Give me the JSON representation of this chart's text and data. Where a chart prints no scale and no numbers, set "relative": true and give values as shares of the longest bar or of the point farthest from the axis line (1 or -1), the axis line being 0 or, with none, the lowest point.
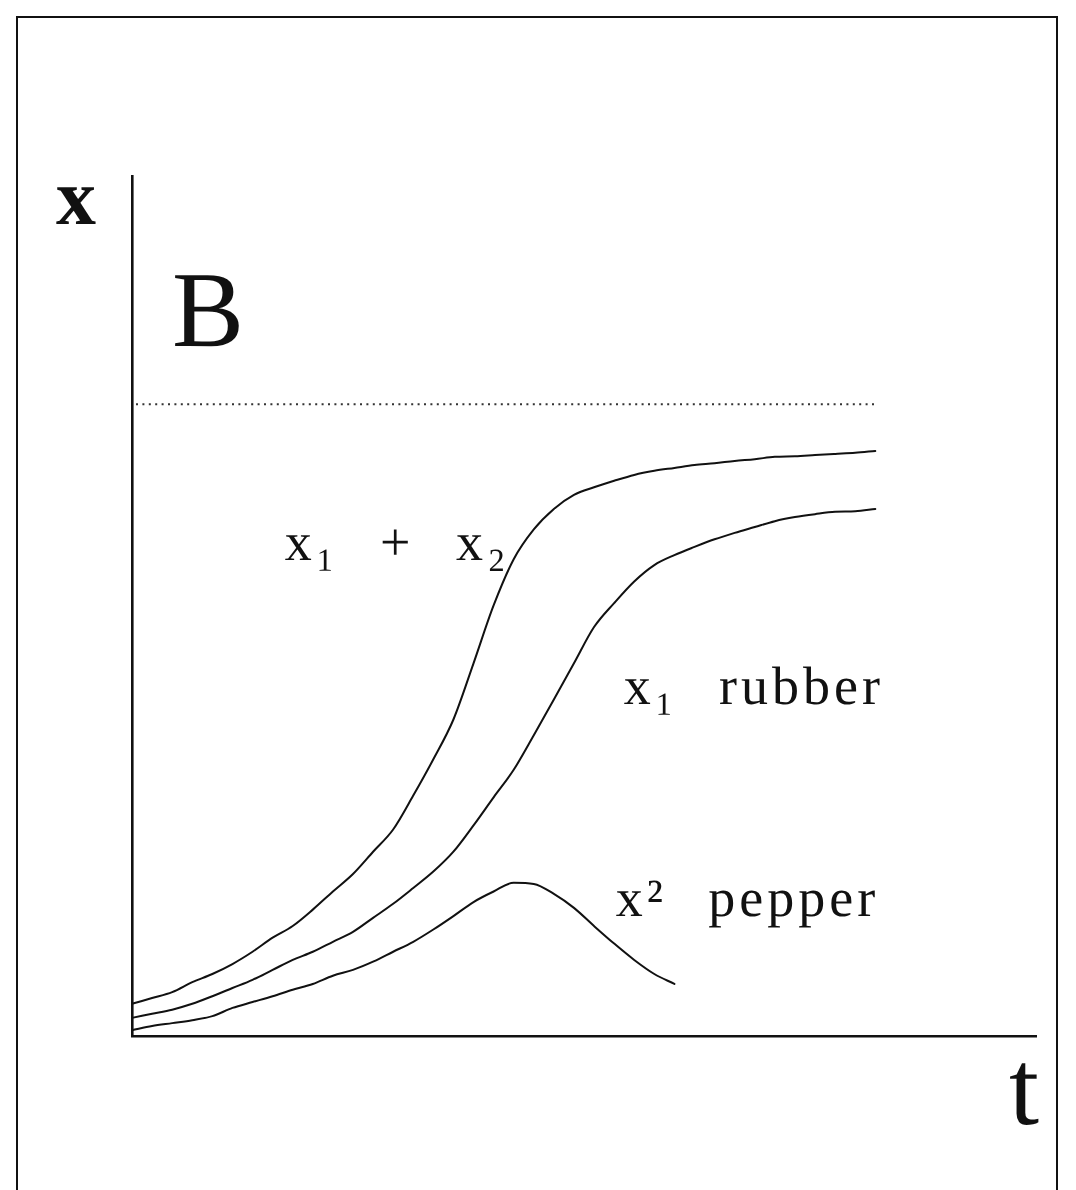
{
  "chart_data": {
    "type": "line",
    "relative": true,
    "xlabel": "t",
    "ylabel": "x",
    "annotations": [
      "B"
    ],
    "categories": [
      null,
      null,
      null,
      null,
      null,
      null,
      null,
      null,
      null,
      null,
      null,
      null,
      null,
      null,
      null,
      null,
      null,
      null,
      null,
      null,
      null,
      null,
      null,
      null,
      null,
      null,
      null,
      null,
      null,
      null,
      null,
      null,
      null,
      null,
      null,
      null,
      null,
      null,
      null,
      null,
      null,
      null,
      null,
      null,
      null,
      null
    ],
    "series": [
      {
        "name": "x₁ + x₂",
        "color": "#111111",
        "values": [
          0.055,
          0.065,
          0.075,
          0.092,
          0.106,
          0.123,
          0.144,
          0.168,
          0.188,
          0.216,
          0.247,
          0.277,
          0.315,
          0.353,
          0.411,
          0.473,
          0.541,
          0.637,
          0.736,
          0.815,
          0.866,
          0.901,
          0.925,
          0.938,
          0.949,
          0.959,
          0.966,
          0.971,
          0.976,
          0.979,
          0.983,
          0.986,
          0.99,
          0.991,
          0.993,
          0.995,
          0.997,
          1,
          null,
          null,
          null,
          null,
          null,
          null,
          null,
          null
        ]
      },
      {
        "name": "x₁ rubber",
        "color": "#111111",
        "values": [
          0.031,
          0.038,
          0.045,
          0.055,
          0.068,
          0.082,
          0.096,
          0.113,
          0.13,
          0.144,
          0.161,
          0.178,
          0.202,
          0.226,
          0.253,
          0.281,
          0.315,
          0.36,
          0.408,
          0.455,
          0.514,
          0.575,
          0.637,
          0.699,
          0.74,
          0.777,
          0.805,
          0.822,
          0.836,
          0.849,
          0.86,
          0.87,
          0.88,
          0.887,
          0.892,
          0.896,
          0.897,
          0.901,
          null,
          null,
          null,
          null,
          null,
          null,
          null,
          null
        ]
      },
      {
        "name": "x² pepper",
        "color": "#111111",
        "values": [
          0.01,
          0.017,
          0.022,
          0.027,
          0.034,
          0.048,
          0.058,
          0.068,
          0.079,
          0.089,
          0.103,
          0.113,
          0.127,
          0.144,
          0.161,
          0.182,
          0.205,
          0.229,
          0.247,
          0.262,
          0.26,
          0.243,
          0.219,
          0.188,
          0.158,
          0.13,
          0.106,
          0.089,
          null,
          null,
          null,
          null,
          null,
          null,
          null,
          null,
          null,
          null,
          null,
          null,
          null,
          null,
          null,
          null,
          null,
          null
        ]
      }
    ],
    "ref_lines": [
      {
        "axis": "y",
        "value": 1.08,
        "color": "#333333",
        "line_style": "dotted"
      }
    ],
    "marker": "none",
    "line_style": "solid",
    "legend": false,
    "grid": false
  }
}
